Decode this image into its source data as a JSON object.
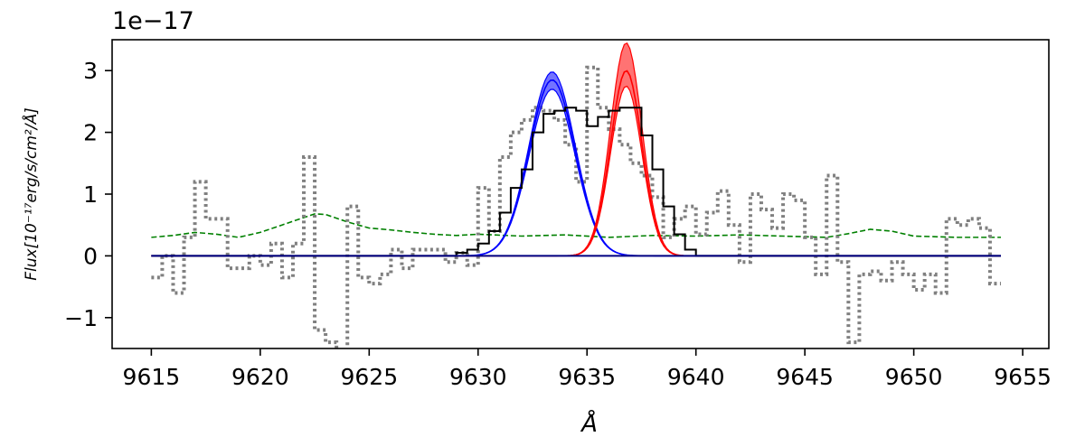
{
  "chart_data": {
    "type": "line",
    "title": "",
    "offset_label": "1e−17",
    "xlabel": "Å",
    "ylabel_main": "Flux",
    "ylabel_unit": "[10⁻¹⁷erg/s/cm²/Å]",
    "xlim": [
      9613.2,
      9656.2
    ],
    "ylim": [
      -1.5,
      3.5
    ],
    "xticks": [
      9615,
      9620,
      9625,
      9630,
      9635,
      9640,
      9645,
      9650,
      9655
    ],
    "yticks": [
      -1,
      0,
      1,
      2,
      3
    ],
    "colors": {
      "observed": "#808080",
      "model_total": "#000000",
      "component_blue": "#0000ff",
      "component_red": "#ff0000",
      "error": "#008000",
      "zero_line": "#000080"
    },
    "series": [
      {
        "style": "dotted-steps",
        "color": "#808080",
        "x": [
          9615.0,
          9615.5,
          9616.0,
          9616.5,
          9617.0,
          9617.5,
          9618.0,
          9618.5,
          9619.0,
          9619.5,
          9620.0,
          9620.5,
          9621.0,
          9621.5,
          9622.0,
          9622.5,
          9623.0,
          9623.5,
          9624.0,
          9624.5,
          9625.0,
          9625.5,
          9626.0,
          9626.5,
          9627.0,
          9627.5,
          9628.0,
          9628.5,
          9629.0,
          9629.5,
          9630.0,
          9630.5,
          9631.0,
          9631.5,
          9632.0,
          9632.5,
          9633.0,
          9633.5,
          9634.0,
          9634.5,
          9635.0,
          9635.5,
          9636.0,
          9636.5,
          9637.0,
          9637.5,
          9638.0,
          9638.5,
          9639.0,
          9639.5,
          9640.0,
          9640.5,
          9641.0,
          9641.5,
          9642.0,
          9642.5,
          9643.0,
          9643.5,
          9644.0,
          9644.5,
          9645.0,
          9645.5,
          9646.0,
          9646.5,
          9647.0,
          9647.5,
          9648.0,
          9648.5,
          9649.0,
          9649.5,
          9650.0,
          9650.5,
          9651.0,
          9651.5,
          9652.0,
          9652.5,
          9653.0,
          9653.5,
          9654.0
        ],
        "y": [
          -0.35,
          0.0,
          -0.6,
          0.3,
          1.2,
          0.6,
          0.6,
          -0.2,
          -0.2,
          0.0,
          -0.15,
          0.2,
          -0.35,
          0.2,
          1.6,
          -1.2,
          -1.4,
          -1.6,
          0.8,
          -0.35,
          -0.45,
          -0.3,
          0.1,
          -0.2,
          0.1,
          0.1,
          0.1,
          -0.1,
          0.05,
          -0.15,
          1.1,
          0.4,
          1.6,
          2.0,
          2.2,
          2.4,
          2.35,
          2.2,
          1.8,
          1.2,
          3.05,
          2.4,
          2.05,
          1.8,
          1.5,
          1.3,
          0.95,
          0.3,
          0.6,
          0.8,
          0.35,
          0.7,
          1.05,
          0.5,
          -0.1,
          1.0,
          0.75,
          0.45,
          1.0,
          0.9,
          0.3,
          -0.3,
          1.3,
          -0.1,
          -1.4,
          -0.3,
          -0.25,
          -0.4,
          -0.1,
          -0.3,
          -0.55,
          -0.3,
          -0.6,
          0.6,
          0.5,
          0.6,
          0.45,
          -0.45,
          -0.45
        ]
      },
      {
        "style": "steps",
        "color": "#000000",
        "x": [
          9615.0,
          9629.0,
          9629.5,
          9630.0,
          9630.5,
          9631.0,
          9631.5,
          9632.0,
          9632.5,
          9633.0,
          9633.5,
          9634.0,
          9634.5,
          9635.0,
          9635.5,
          9636.0,
          9636.5,
          9637.0,
          9637.5,
          9638.0,
          9638.5,
          9639.0,
          9639.5,
          9640.0,
          9640.5,
          9654.0
        ],
        "y": [
          0.0,
          0.05,
          0.1,
          0.2,
          0.4,
          0.7,
          1.1,
          1.4,
          2.0,
          2.3,
          2.35,
          2.4,
          2.35,
          2.1,
          2.25,
          2.35,
          2.4,
          2.4,
          1.95,
          1.4,
          0.8,
          0.35,
          0.1,
          0.0,
          0.0,
          0.0
        ]
      },
      {
        "style": "dashed",
        "color": "#008000",
        "x": [
          9615.0,
          9616.0,
          9617.0,
          9618.0,
          9619.0,
          9620.0,
          9621.0,
          9622.0,
          9622.5,
          9623.0,
          9624.0,
          9625.0,
          9626.0,
          9627.0,
          9628.0,
          9629.0,
          9630.0,
          9632.0,
          9634.0,
          9636.0,
          9638.0,
          9640.0,
          9642.0,
          9644.0,
          9646.0,
          9647.0,
          9648.0,
          9649.0,
          9650.0,
          9652.0,
          9654.0
        ],
        "y": [
          0.3,
          0.33,
          0.38,
          0.35,
          0.3,
          0.38,
          0.5,
          0.62,
          0.68,
          0.67,
          0.55,
          0.45,
          0.42,
          0.38,
          0.35,
          0.33,
          0.35,
          0.32,
          0.34,
          0.3,
          0.33,
          0.32,
          0.34,
          0.32,
          0.3,
          0.36,
          0.43,
          0.4,
          0.32,
          0.3,
          0.3
        ]
      }
    ],
    "gaussians": [
      {
        "color": "#0000ff",
        "center": 9633.4,
        "sigma": 1.05,
        "amplitude": 2.85,
        "amplitude_low": 2.7,
        "amplitude_high": 2.98
      },
      {
        "color": "#ff0000",
        "center": 9636.8,
        "sigma": 0.72,
        "amplitude": 3.0,
        "amplitude_low": 2.75,
        "amplitude_high": 3.45
      }
    ],
    "zero_line": {
      "color": "#000080",
      "x": [
        9615.0,
        9654.0
      ],
      "y": 0.0
    },
    "grid": false,
    "legend": "none"
  }
}
